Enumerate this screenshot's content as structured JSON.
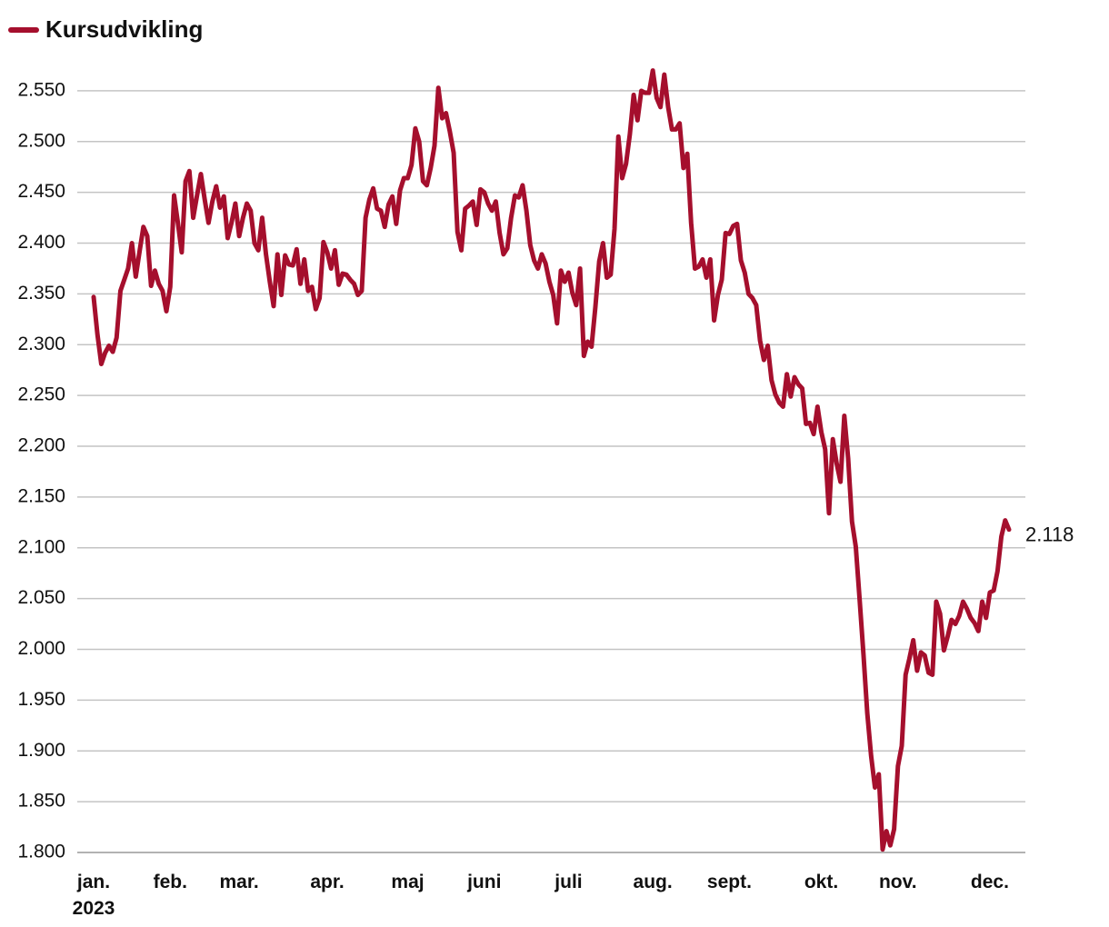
{
  "chart_data": {
    "type": "line",
    "legend": "top-left",
    "grid": true,
    "ylim": [
      1800,
      2575
    ],
    "yticks": [
      {
        "value": 1800,
        "label": "1.800"
      },
      {
        "value": 1850,
        "label": "1.850"
      },
      {
        "value": 1900,
        "label": "1.900"
      },
      {
        "value": 1950,
        "label": "1.950"
      },
      {
        "value": 2000,
        "label": "2.000"
      },
      {
        "value": 2050,
        "label": "2.050"
      },
      {
        "value": 2100,
        "label": "2.100"
      },
      {
        "value": 2150,
        "label": "2.150"
      },
      {
        "value": 2200,
        "label": "2.200"
      },
      {
        "value": 2250,
        "label": "2.250"
      },
      {
        "value": 2300,
        "label": "2.300"
      },
      {
        "value": 2350,
        "label": "2.350"
      },
      {
        "value": 2400,
        "label": "2.400"
      },
      {
        "value": 2450,
        "label": "2.450"
      },
      {
        "value": 2500,
        "label": "2.500"
      },
      {
        "value": 2550,
        "label": "2.550"
      }
    ],
    "categories": [
      "jan.\n2023",
      null,
      null,
      null,
      null,
      null,
      null,
      null,
      null,
      null,
      null,
      null,
      null,
      null,
      null,
      null,
      null,
      null,
      null,
      null,
      "feb.",
      null,
      null,
      null,
      null,
      null,
      null,
      null,
      null,
      null,
      null,
      null,
      null,
      null,
      null,
      null,
      null,
      null,
      "mar.",
      null,
      null,
      null,
      null,
      null,
      null,
      null,
      null,
      null,
      null,
      null,
      null,
      null,
      null,
      null,
      null,
      null,
      null,
      null,
      null,
      null,
      null,
      "apr.",
      null,
      null,
      null,
      null,
      null,
      null,
      null,
      null,
      null,
      null,
      null,
      null,
      null,
      null,
      null,
      null,
      null,
      null,
      null,
      null,
      "maj",
      null,
      null,
      null,
      null,
      null,
      null,
      null,
      null,
      null,
      null,
      null,
      null,
      null,
      null,
      null,
      null,
      null,
      null,
      null,
      "juni",
      null,
      null,
      null,
      null,
      null,
      null,
      null,
      null,
      null,
      null,
      null,
      null,
      null,
      null,
      null,
      null,
      null,
      null,
      null,
      null,
      null,
      "juli",
      null,
      null,
      null,
      null,
      null,
      null,
      null,
      null,
      null,
      null,
      null,
      null,
      null,
      null,
      null,
      null,
      null,
      null,
      null,
      null,
      null,
      "aug.",
      null,
      null,
      null,
      null,
      null,
      null,
      null,
      null,
      null,
      null,
      null,
      null,
      null,
      null,
      null,
      null,
      null,
      null,
      null,
      "sept.",
      null,
      null,
      null,
      null,
      null,
      null,
      null,
      null,
      null,
      null,
      null,
      null,
      null,
      null,
      null,
      null,
      null,
      null,
      null,
      null,
      null,
      null,
      null,
      "okt.",
      null,
      null,
      null,
      null,
      null,
      null,
      null,
      null,
      null,
      null,
      null,
      null,
      null,
      null,
      null,
      null,
      null,
      null,
      null,
      "nov.",
      null,
      null,
      null,
      null,
      null,
      null,
      null,
      null,
      null,
      null,
      null,
      null,
      null,
      null,
      null,
      null,
      null,
      null,
      null,
      null,
      null,
      null,
      null,
      "dec.",
      null,
      null,
      null,
      null,
      null
    ],
    "series": [
      {
        "name": "Kursudvikling",
        "color": "#a50f2d",
        "values": [
          2347,
          2310,
          2281,
          2292,
          2299,
          2293,
          2307,
          2353,
          2364,
          2375,
          2400,
          2367,
          2392,
          2416,
          2407,
          2358,
          2373,
          2360,
          2353,
          2333,
          2357,
          2447,
          2420,
          2391,
          2461,
          2471,
          2425,
          2447,
          2468,
          2443,
          2420,
          2441,
          2456,
          2435,
          2446,
          2405,
          2420,
          2439,
          2407,
          2425,
          2439,
          2432,
          2400,
          2393,
          2425,
          2389,
          2362,
          2338,
          2389,
          2349,
          2388,
          2379,
          2378,
          2394,
          2360,
          2384,
          2353,
          2357,
          2335,
          2346,
          2401,
          2391,
          2375,
          2393,
          2359,
          2370,
          2369,
          2364,
          2360,
          2349,
          2353,
          2425,
          2443,
          2454,
          2434,
          2432,
          2416,
          2438,
          2446,
          2419,
          2452,
          2464,
          2464,
          2477,
          2513,
          2500,
          2461,
          2457,
          2474,
          2496,
          2553,
          2523,
          2528,
          2510,
          2489,
          2411,
          2393,
          2434,
          2437,
          2441,
          2418,
          2453,
          2450,
          2439,
          2432,
          2441,
          2410,
          2389,
          2395,
          2425,
          2447,
          2445,
          2457,
          2432,
          2398,
          2383,
          2375,
          2389,
          2380,
          2362,
          2349,
          2321,
          2373,
          2362,
          2371,
          2351,
          2339,
          2375,
          2289,
          2303,
          2298,
          2337,
          2382,
          2400,
          2366,
          2369,
          2414,
          2505,
          2464,
          2478,
          2507,
          2546,
          2521,
          2550,
          2548,
          2548,
          2570,
          2543,
          2534,
          2566,
          2534,
          2512,
          2512,
          2518,
          2474,
          2488,
          2420,
          2375,
          2377,
          2384,
          2366,
          2384,
          2324,
          2349,
          2364,
          2410,
          2409,
          2417,
          2419,
          2383,
          2371,
          2350,
          2346,
          2339,
          2304,
          2285,
          2299,
          2265,
          2251,
          2243,
          2239,
          2271,
          2249,
          2268,
          2261,
          2257,
          2222,
          2223,
          2212,
          2239,
          2214,
          2197,
          2134,
          2207,
          2183,
          2165,
          2230,
          2188,
          2126,
          2101,
          2049,
          1995,
          1937,
          1895,
          1864,
          1877,
          1803,
          1821,
          1807,
          1823,
          1885,
          1905,
          1975,
          1991,
          2009,
          1979,
          1997,
          1994,
          1977,
          1975,
          2047,
          2035,
          1999,
          2013,
          2029,
          2025,
          2033,
          2047,
          2040,
          2031,
          2026,
          2018,
          2047,
          2031,
          2056,
          2058,
          2077,
          2111,
          2127,
          2118
        ],
        "value_labels": [
          null,
          null,
          null,
          null,
          null,
          null,
          null,
          null,
          null,
          null,
          null,
          null,
          null,
          null,
          null,
          null,
          null,
          null,
          null,
          null,
          null,
          null,
          null,
          null,
          null,
          null,
          null,
          null,
          null,
          null,
          null,
          null,
          null,
          null,
          null,
          null,
          null,
          null,
          null,
          null,
          null,
          null,
          null,
          null,
          null,
          null,
          null,
          null,
          null,
          null,
          null,
          null,
          null,
          null,
          null,
          null,
          null,
          null,
          null,
          null,
          null,
          null,
          null,
          null,
          null,
          null,
          null,
          null,
          null,
          null,
          null,
          null,
          null,
          null,
          null,
          null,
          null,
          null,
          null,
          null,
          null,
          null,
          null,
          null,
          null,
          null,
          null,
          null,
          null,
          null,
          null,
          null,
          null,
          null,
          null,
          null,
          null,
          null,
          null,
          null,
          null,
          null,
          null,
          null,
          null,
          null,
          null,
          null,
          null,
          null,
          null,
          null,
          null,
          null,
          null,
          null,
          null,
          null,
          null,
          null,
          null,
          null,
          null,
          null,
          null,
          null,
          null,
          null,
          null,
          null,
          null,
          null,
          null,
          null,
          null,
          null,
          null,
          null,
          null,
          null,
          null,
          null,
          null,
          null,
          null,
          null,
          null,
          null,
          null,
          null,
          null,
          null,
          null,
          null,
          null,
          null,
          null,
          null,
          null,
          null,
          null,
          null,
          null,
          null,
          null,
          null,
          null,
          null,
          null,
          null,
          null,
          null,
          null,
          null,
          null,
          null,
          null,
          null,
          null,
          null,
          null,
          null,
          null,
          null,
          null,
          null,
          null,
          null,
          null,
          null,
          null,
          null,
          null,
          null,
          null,
          null,
          null,
          null,
          null,
          null,
          null,
          null,
          null,
          null,
          null,
          null,
          null,
          null,
          null,
          null,
          null,
          null,
          null,
          null,
          null,
          null,
          null,
          null,
          null,
          null,
          null,
          null,
          null,
          null,
          null,
          null,
          null,
          null,
          null,
          null,
          null,
          null,
          null,
          null,
          null,
          null,
          null,
          null,
          null,
          "2.118"
        ]
      }
    ]
  }
}
